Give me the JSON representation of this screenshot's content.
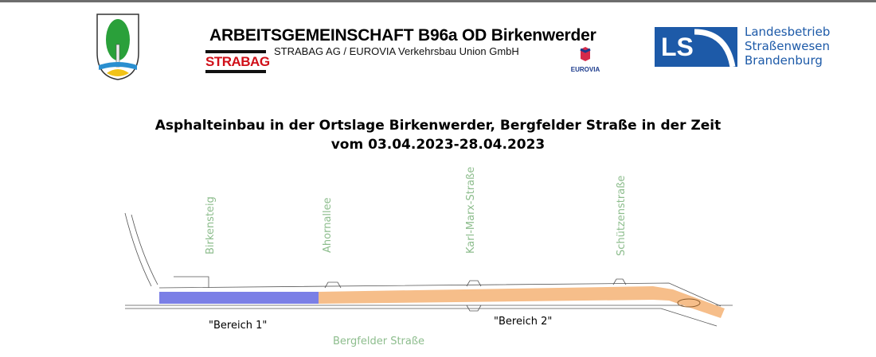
{
  "header": {
    "title": "ARBEITSGEMEINSCHAFT B96a OD Birkenwerder",
    "subtitle": "STRABAG AG / EUROVIA Verkehrsbau Union GmbH",
    "strabag_logo": "STRABAG",
    "eurovia_logo": "EUROVIA",
    "ls_logo": "LS",
    "ls_text": [
      "Landesbetrieb",
      "Straßenwesen",
      "Brandenburg"
    ]
  },
  "heading": {
    "line1": "Asphalteinbau in der Ortslage Birkenwerder, Bergfelder Straße in der Zeit",
    "line2": "vom 03.04.2023-28.04.2023"
  },
  "map": {
    "cross_streets": [
      "Birkensteig",
      "Ahornallee",
      "Karl-Marx-Straße",
      "Schützenstraße"
    ],
    "areas": [
      "\"Bereich 1\"",
      "\"Bereich 2\""
    ],
    "main_street": "Bergfelder Straße",
    "colors": {
      "bereich1": "#7b7fe6",
      "bereich2": "#f6be8a",
      "street_label": "#8dbd8d"
    }
  }
}
